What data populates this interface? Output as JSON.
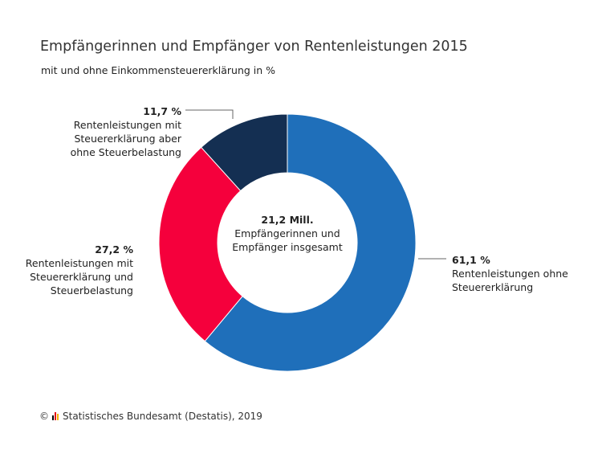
{
  "chart_data": {
    "type": "pie",
    "donut": true,
    "title": "Empfängerinnen und Empfänger von Rentenleistungen 2015",
    "subtitle": "mit und ohne Einkommensteuererklärung in %",
    "center": {
      "total": "21,2 Mill.",
      "text": "Empfängerinnen und Empfänger insgesamt"
    },
    "slices": [
      {
        "value": 61.1,
        "value_label": "61,1 %",
        "label": "Rentenleistungen ohne Steuererklärung",
        "color": "#1f6fba"
      },
      {
        "value": 27.2,
        "value_label": "27,2 %",
        "label": "Rentenleistungen mit Steuererklärung und Steuerbelastung",
        "color": "#f5003c"
      },
      {
        "value": 11.7,
        "value_label": "11,7 %",
        "label": "Rentenleistungen mit Steuererklärung aber ohne Steuerbelastung",
        "color": "#142f52"
      }
    ]
  },
  "footer": {
    "copyright": "©",
    "source": "Statistisches Bundesamt (Destatis), 2019"
  }
}
